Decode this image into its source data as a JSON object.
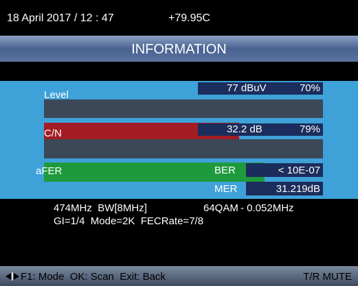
{
  "header": {
    "datetime": "18 April 2017 / 12 : 47",
    "temperature": "+79.95C"
  },
  "title": "INFORMATION",
  "level": {
    "label": "Level",
    "value": "77 dBuV",
    "percent": 70,
    "percent_label": "70%"
  },
  "cn": {
    "label": "C/N",
    "value": "32.2 dB",
    "percent": 79,
    "percent_label": "79%"
  },
  "afer": "aFER",
  "ber": {
    "label": "BER",
    "value": "< 10E-07"
  },
  "mer": {
    "label": "MER",
    "value": "31.219dB"
  },
  "info": {
    "line1": [
      "474MHz  BW[8MHz]",
      "64QAM",
      "- 0.052MHz"
    ],
    "line2": "GI=1/4  Mode=2K  FECRate=7/8"
  },
  "footer": {
    "keys": "F1: Mode  OK: Scan  Exit: Back",
    "right": "T/R MUTE"
  }
}
